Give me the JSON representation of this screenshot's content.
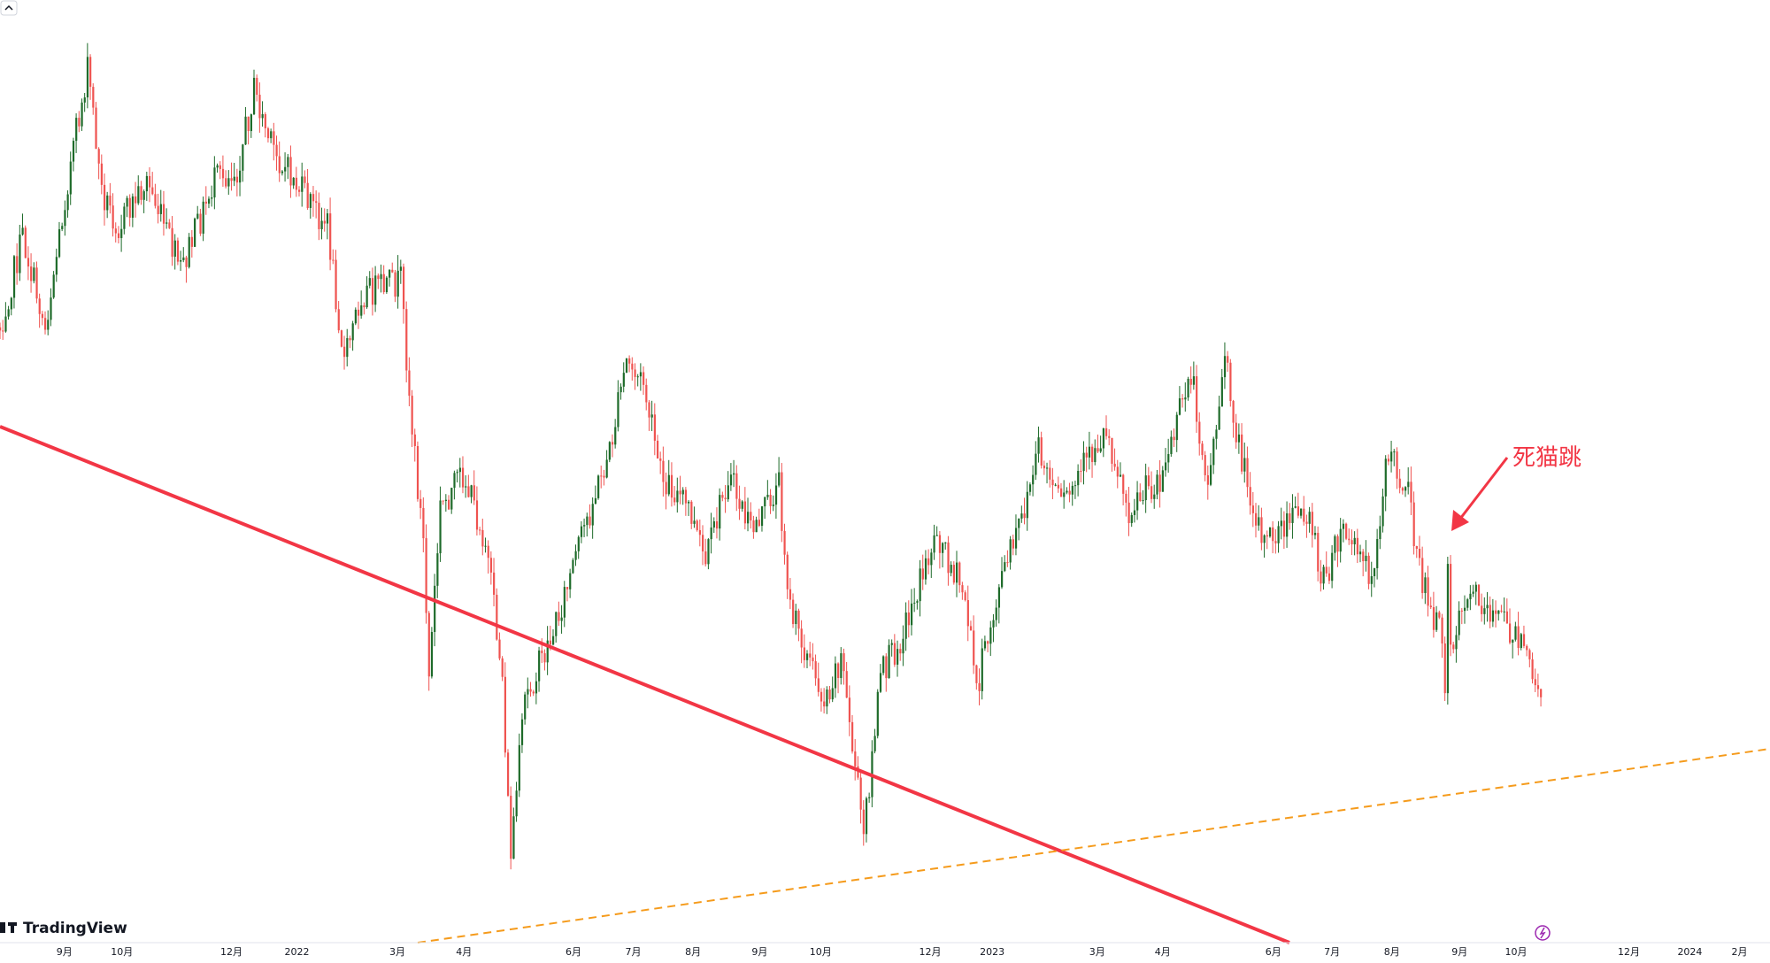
{
  "x_axis": {
    "labels": [
      "9月",
      "10月",
      "12月",
      "2022",
      "3月",
      "4月",
      "6月",
      "7月",
      "8月",
      "9月",
      "10月",
      "12月",
      "2023",
      "3月",
      "4月",
      "6月",
      "7月",
      "8月",
      "9月",
      "10月",
      "12月",
      "2024",
      "2月"
    ]
  },
  "annotation": "死猫跳",
  "logo": "TradingView"
}
